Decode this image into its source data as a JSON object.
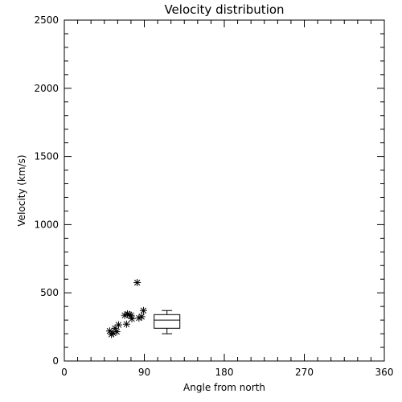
{
  "chart_data": {
    "type": "scatter",
    "title": "Velocity distribution",
    "xlabel": "Angle from north",
    "ylabel": "Velocity (km/s)",
    "xlim": [
      0,
      360
    ],
    "ylim": [
      0,
      2500
    ],
    "xticks": [
      0,
      90,
      180,
      270,
      360
    ],
    "yticks": [
      0,
      500,
      1000,
      1500,
      2000,
      2500
    ],
    "grid": false,
    "marker": "asterisk",
    "points": [
      {
        "x": 51,
        "y": 220
      },
      {
        "x": 53,
        "y": 195
      },
      {
        "x": 55,
        "y": 205
      },
      {
        "x": 57,
        "y": 240
      },
      {
        "x": 59,
        "y": 215
      },
      {
        "x": 61,
        "y": 265
      },
      {
        "x": 68,
        "y": 335
      },
      {
        "x": 70,
        "y": 270
      },
      {
        "x": 71,
        "y": 345
      },
      {
        "x": 73,
        "y": 340
      },
      {
        "x": 75,
        "y": 335
      },
      {
        "x": 76,
        "y": 310
      },
      {
        "x": 82,
        "y": 575
      },
      {
        "x": 84,
        "y": 315
      },
      {
        "x": 87,
        "y": 325
      },
      {
        "x": 89,
        "y": 370
      }
    ],
    "boxplot": {
      "x_left": 101,
      "x_right": 130,
      "whisker_low": 200,
      "q1": 240,
      "median": 300,
      "q3": 340,
      "whisker_high": 370
    }
  }
}
